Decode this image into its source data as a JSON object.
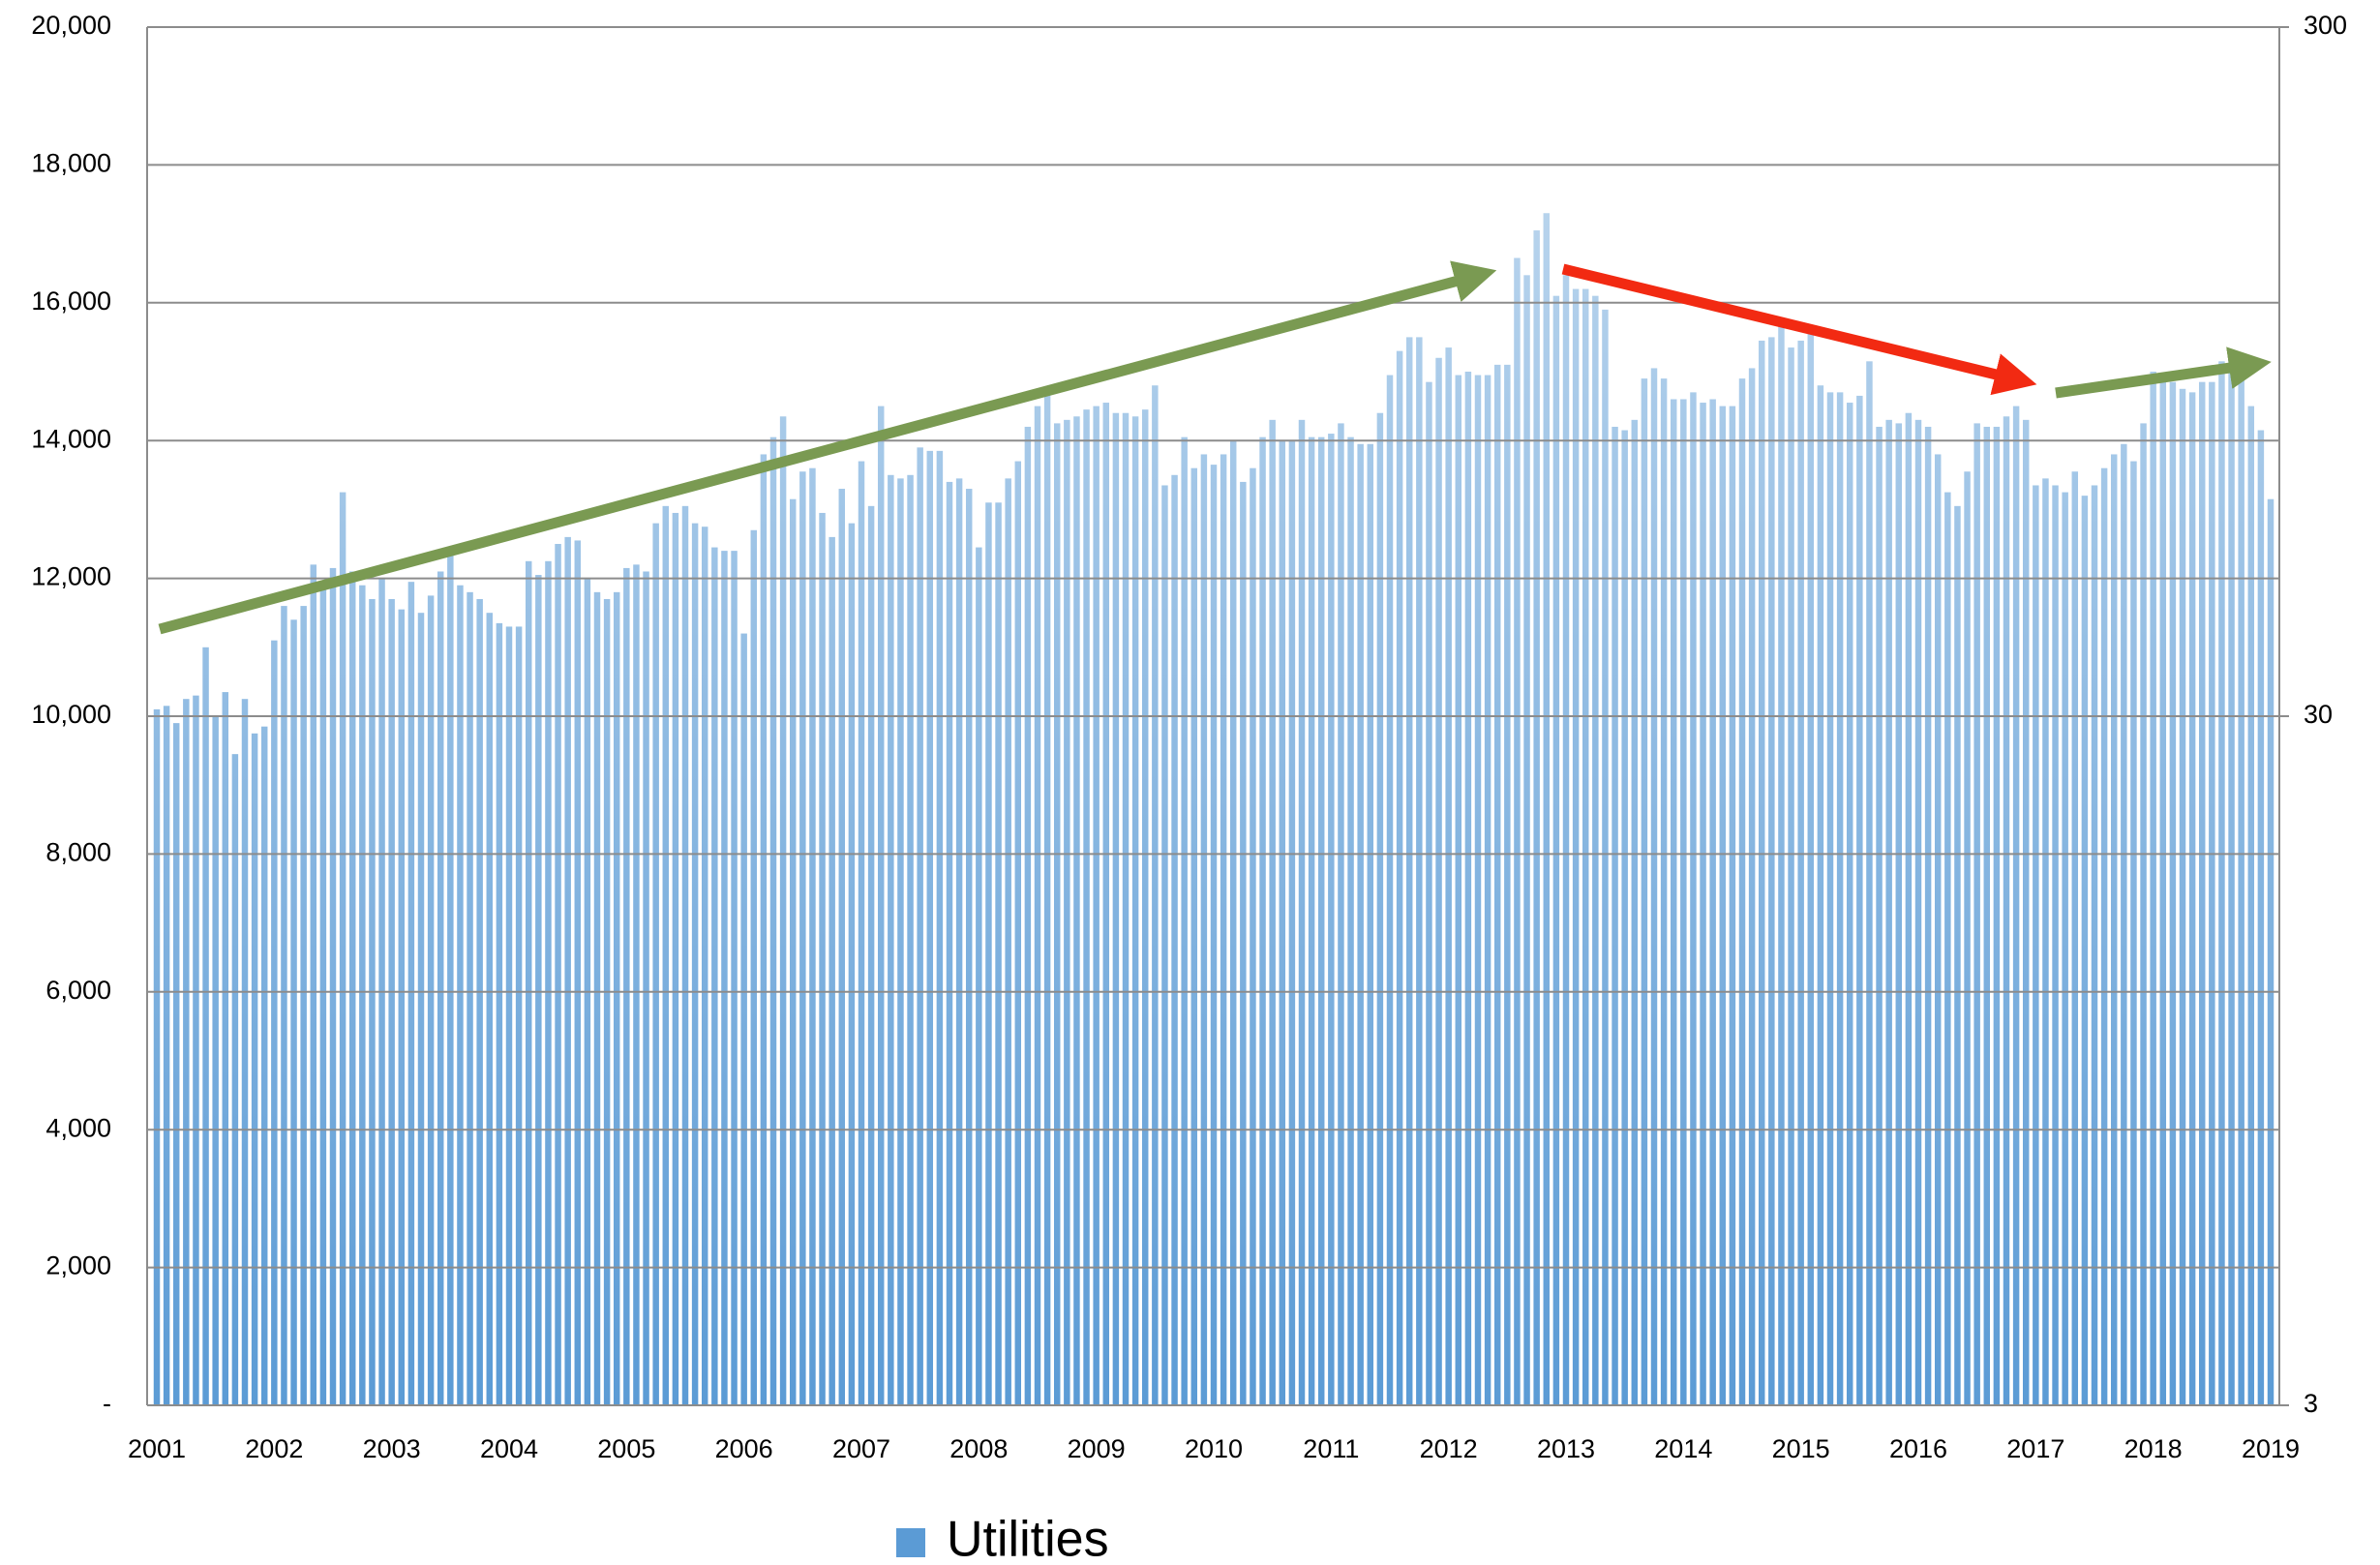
{
  "chart_data": {
    "type": "bar",
    "categories": [
      "2001",
      null,
      null,
      null,
      null,
      null,
      null,
      null,
      null,
      null,
      null,
      null,
      "2002",
      null,
      null,
      null,
      null,
      null,
      null,
      null,
      null,
      null,
      null,
      null,
      "2003",
      null,
      null,
      null,
      null,
      null,
      null,
      null,
      null,
      null,
      null,
      null,
      "2004",
      null,
      null,
      null,
      null,
      null,
      null,
      null,
      null,
      null,
      null,
      null,
      "2005",
      null,
      null,
      null,
      null,
      null,
      null,
      null,
      null,
      null,
      null,
      null,
      "2006",
      null,
      null,
      null,
      null,
      null,
      null,
      null,
      null,
      null,
      null,
      null,
      "2007",
      null,
      null,
      null,
      null,
      null,
      null,
      null,
      null,
      null,
      null,
      null,
      "2008",
      null,
      null,
      null,
      null,
      null,
      null,
      null,
      null,
      null,
      null,
      null,
      "2009",
      null,
      null,
      null,
      null,
      null,
      null,
      null,
      null,
      null,
      null,
      null,
      "2010",
      null,
      null,
      null,
      null,
      null,
      null,
      null,
      null,
      null,
      null,
      null,
      "2011",
      null,
      null,
      null,
      null,
      null,
      null,
      null,
      null,
      null,
      null,
      null,
      "2012",
      null,
      null,
      null,
      null,
      null,
      null,
      null,
      null,
      null,
      null,
      null,
      "2013",
      null,
      null,
      null,
      null,
      null,
      null,
      null,
      null,
      null,
      null,
      null,
      "2014",
      null,
      null,
      null,
      null,
      null,
      null,
      null,
      null,
      null,
      null,
      null,
      "2015",
      null,
      null,
      null,
      null,
      null,
      null,
      null,
      null,
      null,
      null,
      null,
      "2016",
      null,
      null,
      null,
      null,
      null,
      null,
      null,
      null,
      null,
      null,
      null,
      "2017",
      null,
      null,
      null,
      null,
      null,
      null,
      null,
      null,
      null,
      null,
      null,
      "2018",
      null,
      null,
      null,
      null,
      null,
      null,
      null,
      null,
      null,
      null,
      null,
      "2019"
    ],
    "series": [
      {
        "name": "Utilities",
        "color": "#5b9bd5",
        "values": [
          10100,
          10150,
          9900,
          10250,
          10300,
          11000,
          10000,
          10350,
          9450,
          10250,
          9750,
          9850,
          11100,
          11600,
          11400,
          11600,
          12200,
          11900,
          12150,
          13250,
          12100,
          11900,
          11700,
          12000,
          11700,
          11550,
          11950,
          11500,
          11750,
          12100,
          12350,
          11900,
          11800,
          11700,
          11500,
          11350,
          11300,
          11300,
          12250,
          12050,
          12250,
          12500,
          12600,
          12550,
          12000,
          11800,
          11700,
          11800,
          12150,
          12200,
          12100,
          12800,
          13050,
          12950,
          13050,
          12800,
          12750,
          12450,
          12400,
          12400,
          11200,
          12700,
          13800,
          14050,
          14350,
          13150,
          13550,
          13600,
          12950,
          12600,
          13300,
          12800,
          13700,
          13050,
          14500,
          13500,
          13450,
          13500,
          13900,
          13850,
          13850,
          13400,
          13450,
          13300,
          12450,
          13100,
          13100,
          13450,
          13700,
          14200,
          14500,
          14700,
          14250,
          14300,
          14350,
          14450,
          14500,
          14550,
          14400,
          14400,
          14350,
          14450,
          14800,
          13350,
          13500,
          14050,
          13600,
          13800,
          13650,
          13800,
          14000,
          13400,
          13600,
          14050,
          14300,
          14000,
          14000,
          14300,
          14050,
          14050,
          14100,
          14250,
          14050,
          13950,
          13950,
          14400,
          14950,
          15300,
          15500,
          15500,
          14850,
          15200,
          15350,
          14950,
          15000,
          14950,
          14950,
          15100,
          15100,
          16650,
          16400,
          17050,
          17300,
          16100,
          16400,
          16200,
          16200,
          16100,
          15900,
          14200,
          14150,
          14300,
          14900,
          15050,
          14900,
          14600,
          14600,
          14700,
          14550,
          14600,
          14500,
          14500,
          14900,
          15050,
          15450,
          15500,
          15750,
          15350,
          15450,
          15600,
          14800,
          14700,
          14700,
          14550,
          14650,
          15150,
          14200,
          14300,
          14250,
          14400,
          14300,
          14200,
          13800,
          13250,
          13050,
          13550,
          14250,
          14200,
          14200,
          14350,
          14500,
          14300,
          13350,
          13450,
          13350,
          13250,
          13550,
          13200,
          13350,
          13600,
          13800,
          13950,
          13700,
          14250,
          15000,
          14850,
          14850,
          14750,
          14700,
          14850,
          14850,
          15150,
          15300,
          14900,
          14500,
          14150,
          13150
        ]
      }
    ],
    "ylim": [
      0,
      20000
    ],
    "yticks": [
      {
        "value": 0,
        "label": "-"
      },
      {
        "value": 2000,
        "label": "2,000"
      },
      {
        "value": 4000,
        "label": "4,000"
      },
      {
        "value": 6000,
        "label": "6,000"
      },
      {
        "value": 8000,
        "label": "8,000"
      },
      {
        "value": 10000,
        "label": "10,000"
      },
      {
        "value": 12000,
        "label": "12,000"
      },
      {
        "value": 14000,
        "label": "14,000"
      },
      {
        "value": 16000,
        "label": "16,000"
      },
      {
        "value": 18000,
        "label": "18,000"
      },
      {
        "value": 20000,
        "label": "20,000"
      }
    ],
    "y2lim": [
      3,
      300
    ],
    "y2ticks": [
      3,
      30,
      300
    ],
    "y2log": true,
    "grid": true,
    "legend": "bottom"
  }
}
